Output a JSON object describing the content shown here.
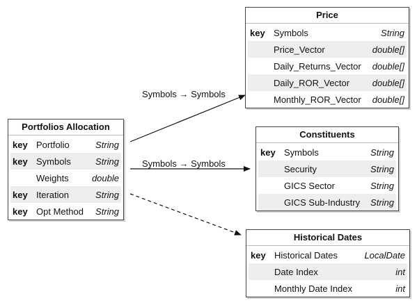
{
  "entities": {
    "portfolios": {
      "title": "Portfolios Allocation",
      "rows": [
        {
          "key": "key",
          "name": "Portfolio",
          "type": "String"
        },
        {
          "key": "key",
          "name": "Symbols",
          "type": "String"
        },
        {
          "key": "",
          "name": "Weights",
          "type": "double"
        },
        {
          "key": "key",
          "name": "Iteration",
          "type": "String"
        },
        {
          "key": "key",
          "name": "Opt Method",
          "type": "String"
        }
      ]
    },
    "price": {
      "title": "Price",
      "rows": [
        {
          "key": "key",
          "name": "Symbols",
          "type": "String"
        },
        {
          "key": "",
          "name": "Price_Vector",
          "type": "double[]"
        },
        {
          "key": "",
          "name": "Daily_Returns_Vector",
          "type": "double[]"
        },
        {
          "key": "",
          "name": "Daily_ROR_Vector",
          "type": "double[]"
        },
        {
          "key": "",
          "name": "Monthly_ROR_Vector",
          "type": "double[]"
        }
      ]
    },
    "constituents": {
      "title": "Constituents",
      "rows": [
        {
          "key": "key",
          "name": "Symbols",
          "type": "String"
        },
        {
          "key": "",
          "name": "Security",
          "type": "String"
        },
        {
          "key": "",
          "name": "GICS Sector",
          "type": "String"
        },
        {
          "key": "",
          "name": "GICS Sub-Industry",
          "type": "String"
        }
      ]
    },
    "historical": {
      "title": "Historical Dates",
      "rows": [
        {
          "key": "key",
          "name": "Historical Dates",
          "type": "LocalDate"
        },
        {
          "key": "",
          "name": "Date Index",
          "type": "int"
        },
        {
          "key": "",
          "name": "Monthly Date Index",
          "type": "int"
        }
      ]
    }
  },
  "relations": [
    {
      "from": "Portfolios Allocation",
      "to": "Price",
      "label": "Symbols → Symbols",
      "style": "solid"
    },
    {
      "from": "Portfolios Allocation",
      "to": "Constituents",
      "label": "Symbols → Symbols",
      "style": "solid"
    },
    {
      "from": "Portfolios Allocation",
      "to": "Historical Dates",
      "label": "",
      "style": "dashed"
    }
  ],
  "colors": {
    "border": "#444444",
    "row_shade": "#eeeeee",
    "line": "#111111"
  }
}
